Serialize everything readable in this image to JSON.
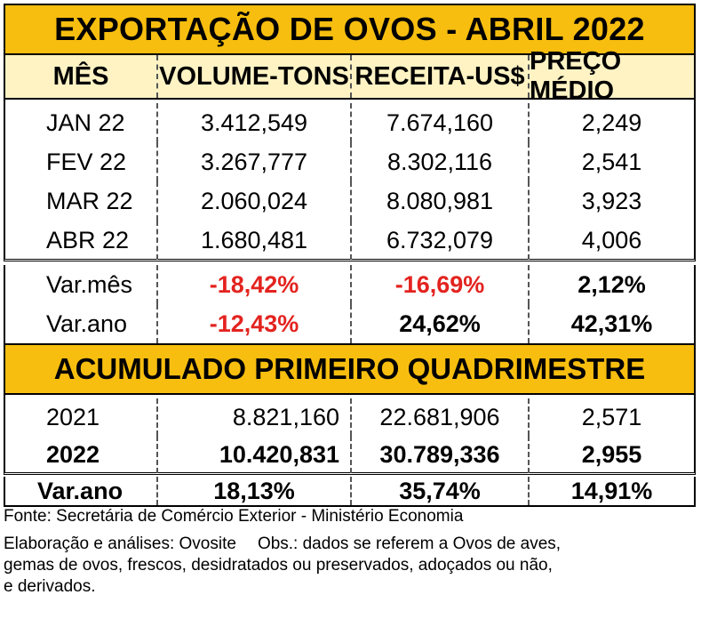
{
  "title": "EXPORTAÇÃO DE OVOS - ABRIL 2022",
  "headers": [
    "MÊS",
    "VOLUME-TONS",
    "RECEITA-US$",
    "PREÇO MÉDIO"
  ],
  "monthly_rows": [
    [
      "JAN 22",
      "3.412,549",
      "7.674,160",
      "2,249"
    ],
    [
      "FEV 22",
      "3.267,777",
      "8.302,116",
      "2,541"
    ],
    [
      "MAR 22",
      "2.060,024",
      "8.080,981",
      "3,923"
    ],
    [
      "ABR 22",
      "1.680,481",
      "6.732,079",
      "4,006"
    ]
  ],
  "variation_rows": [
    [
      "Var.mês",
      "-18,42%",
      "-16,69%",
      "2,12%"
    ],
    [
      "Var.ano",
      "-12,43%",
      "24,62%",
      "42,31%"
    ]
  ],
  "section_title": "ACUMULADO PRIMEIRO QUADRIMESTRE",
  "accum_rows": [
    [
      "2021",
      "8.821,160",
      "22.681,906",
      "2,571"
    ],
    [
      "2022",
      "10.420,831",
      "30.789,336",
      "2,955"
    ],
    [
      "Var.ano",
      "18,13%",
      "35,74%",
      "14,91%"
    ]
  ],
  "footer": {
    "source": "Fonte: Secretária de Comércio Exterior - Ministério Economia",
    "elaboration": "Elaboração e análises: Ovosite",
    "obs_line1": "Obs.: dados se referem a Ovos de aves,",
    "obs_line2": "gemas de ovos, frescos, desidratados ou preservados, adoçados ou não,",
    "obs_line3": "e derivados."
  },
  "colors": {
    "title_bg": "#f7be0f",
    "header_bg": "#fff3c4",
    "negative": "#e3231f"
  }
}
